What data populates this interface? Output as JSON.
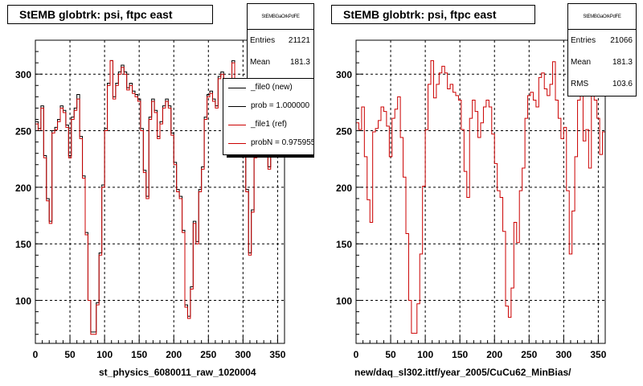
{
  "pads": [
    {
      "id": "left",
      "title": "StEMB globtrk: psi, ftpc east",
      "xlabel": "st_physics_6080011_raw_1020004",
      "stats": {
        "header": "StEMBGaOrkPdFE",
        "rows": [
          {
            "key": "Entries",
            "value": "21121"
          },
          {
            "key": "Mean",
            "value": "181.3"
          }
        ]
      },
      "legend": [
        {
          "label": "_file0 (new)",
          "color": "#000000"
        },
        {
          "label": "prob = 1.000000",
          "color": "#000000"
        },
        {
          "label": "_file1 (ref)",
          "color": "#cc0000"
        },
        {
          "label": "probN = 0.975955",
          "color": "#cc0000"
        }
      ]
    },
    {
      "id": "right",
      "title": "StEMB globtrk: psi, ftpc east",
      "xlabel": "new/daq_sl302.ittf/year_2005/CuCu62_MinBias/",
      "stats": {
        "header": "StEMBGaOrkPdFE",
        "rows": [
          {
            "key": "Entries",
            "value": "21066"
          },
          {
            "key": "Mean",
            "value": "181.3"
          },
          {
            "key": "RMS",
            "value": "103.6"
          }
        ]
      },
      "legend": []
    }
  ],
  "chart_data": [
    {
      "type": "line",
      "title": "StEMB globtrk: psi, ftpc east",
      "xlabel": "st_physics_6080011_raw_1020004",
      "ylabel": "",
      "xlim": [
        0,
        360
      ],
      "ylim": [
        62,
        330
      ],
      "xticks": [
        0,
        50,
        100,
        150,
        200,
        250,
        300,
        350
      ],
      "yticks": [
        100,
        150,
        200,
        250,
        300
      ],
      "grid": true,
      "bin_width": 4,
      "series": [
        {
          "name": "_file0 (new)",
          "color": "#000000",
          "values": [
            258,
            252,
            272,
            228,
            190,
            170,
            250,
            253,
            260,
            272,
            268,
            255,
            228,
            262,
            270,
            282,
            245,
            210,
            160,
            100,
            72,
            72,
            98,
            142,
            202,
            252,
            292,
            312,
            280,
            292,
            302,
            308,
            302,
            288,
            292,
            285,
            282,
            278,
            252,
            215,
            192,
            262,
            278,
            268,
            245,
            258,
            272,
            278,
            272,
            248,
            222,
            198,
            192,
            162,
            96,
            86,
            112,
            170,
            152,
            198,
            218,
            262,
            282,
            285,
            278,
            272,
            298,
            302,
            288,
            282,
            292,
            312,
            278,
            262,
            244,
            254,
            198,
            142,
            180,
            228,
            278,
            312,
            242,
            252,
            218,
            322,
            278,
            262,
            230,
            250
          ]
        },
        {
          "name": "_file1 (ref)",
          "color": "#cc0000",
          "values": [
            256,
            250,
            270,
            226,
            188,
            168,
            248,
            251,
            258,
            270,
            266,
            253,
            226,
            260,
            268,
            278,
            243,
            208,
            158,
            100,
            70,
            70,
            96,
            140,
            200,
            250,
            290,
            312,
            278,
            290,
            300,
            306,
            300,
            286,
            290,
            283,
            280,
            276,
            250,
            213,
            190,
            260,
            276,
            266,
            243,
            256,
            270,
            276,
            270,
            246,
            220,
            196,
            190,
            160,
            94,
            84,
            110,
            168,
            150,
            196,
            216,
            260,
            280,
            283,
            276,
            270,
            296,
            300,
            286,
            280,
            290,
            310,
            276,
            260,
            242,
            252,
            196,
            140,
            178,
            226,
            276,
            310,
            240,
            250,
            216,
            320,
            276,
            260,
            228,
            248
          ]
        }
      ]
    },
    {
      "type": "line",
      "title": "StEMB globtrk: psi, ftpc east",
      "xlabel": "new/daq_sl302.ittf/year_2005/CuCu62_MinBias/",
      "ylabel": "",
      "xlim": [
        0,
        360
      ],
      "ylim": [
        62,
        330
      ],
      "xticks": [
        0,
        50,
        100,
        150,
        200,
        250,
        300,
        350
      ],
      "yticks": [
        100,
        150,
        200,
        250,
        300
      ],
      "grid": true,
      "bin_width": 4,
      "series": [
        {
          "name": "_file1 (ref)",
          "color": "#cc0000",
          "values": [
            257,
            251,
            271,
            227,
            189,
            169,
            249,
            252,
            259,
            271,
            267,
            254,
            227,
            261,
            269,
            280,
            244,
            209,
            159,
            100,
            71,
            71,
            97,
            141,
            201,
            251,
            291,
            312,
            279,
            291,
            301,
            307,
            301,
            287,
            291,
            284,
            281,
            277,
            251,
            214,
            191,
            261,
            277,
            267,
            244,
            257,
            271,
            277,
            271,
            247,
            221,
            197,
            191,
            161,
            95,
            85,
            111,
            169,
            151,
            197,
            217,
            261,
            281,
            284,
            277,
            271,
            297,
            301,
            287,
            281,
            291,
            311,
            277,
            261,
            243,
            253,
            197,
            141,
            179,
            227,
            277,
            311,
            241,
            251,
            217,
            321,
            277,
            261,
            229,
            249
          ]
        }
      ]
    }
  ]
}
